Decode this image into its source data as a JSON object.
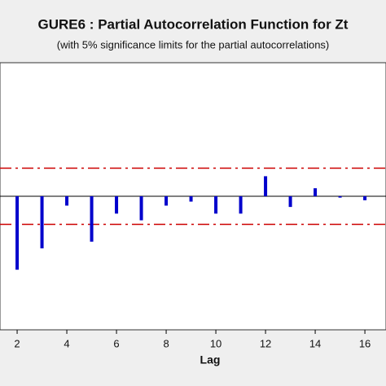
{
  "chart_data": {
    "type": "bar",
    "title": "GURE6 : Partial Autocorrelation Function for Zt",
    "subtitle": "(with 5% significance limits for the partial autocorrelations)",
    "x_label": "Lag",
    "x": [
      2,
      3,
      4,
      5,
      6,
      7,
      8,
      9,
      10,
      11,
      12,
      13,
      14,
      15,
      16
    ],
    "values": [
      -0.55,
      -0.39,
      -0.07,
      -0.34,
      -0.13,
      -0.18,
      -0.07,
      -0.04,
      -0.13,
      -0.13,
      0.15,
      -0.08,
      0.06,
      -0.01,
      -0.03
    ],
    "color": "#0000cc",
    "significance_limits": [
      -0.21,
      0.21
    ],
    "limit_color": "#cc0000",
    "xlim": [
      1.31,
      16.85
    ],
    "xticks": [
      2,
      4,
      6,
      8,
      10,
      12,
      14,
      16
    ],
    "ylim": [
      -1,
      1
    ]
  }
}
